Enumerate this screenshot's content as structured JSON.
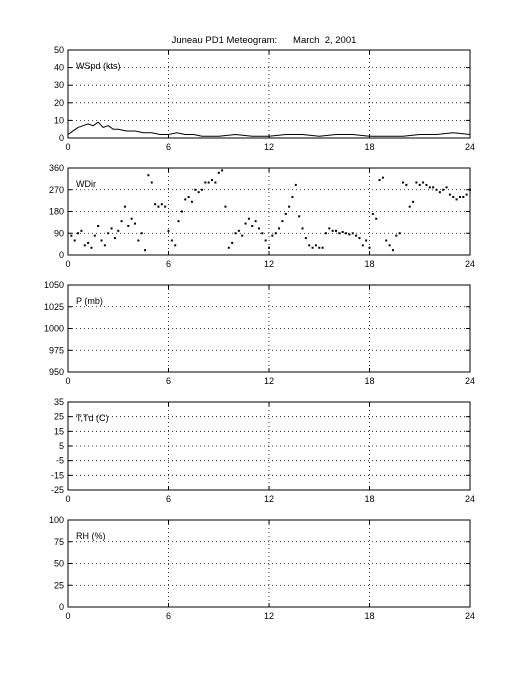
{
  "title": "Juneau PD1 Meteogram:      March  2, 2001",
  "chart_data": [
    {
      "type": "line",
      "label": "WSpd (kts)",
      "xlim": [
        0,
        24
      ],
      "xticks": [
        "0",
        "6",
        "12",
        "18",
        "24"
      ],
      "ylim": [
        0,
        50
      ],
      "yticks": [
        "0",
        "10",
        "20",
        "30",
        "40",
        "50"
      ],
      "grid": true,
      "x": [
        0,
        0.3,
        0.6,
        0.9,
        1.2,
        1.5,
        1.8,
        2.1,
        2.4,
        2.7,
        3.0,
        3.5,
        4.0,
        4.5,
        5.0,
        5.5,
        6.0,
        6.5,
        7.0,
        7.5,
        8.0,
        9.0,
        10.0,
        11.0,
        12.0,
        13.0,
        14.0,
        15.0,
        16.0,
        17.0,
        18.0,
        18.5,
        19.0,
        20.0,
        21.0,
        22.0,
        23.0,
        24.0
      ],
      "values": [
        2,
        4,
        6,
        7,
        8,
        7,
        9,
        6,
        7,
        5,
        5,
        4,
        4,
        3,
        3,
        2,
        2,
        3,
        2,
        2,
        1,
        1,
        2,
        1,
        1,
        2,
        2,
        1,
        2,
        2,
        1,
        1,
        1,
        1,
        2,
        2,
        3,
        2
      ]
    },
    {
      "type": "scatter",
      "label": "WDir",
      "xlim": [
        0,
        24
      ],
      "xticks": [
        "0",
        "6",
        "12",
        "18",
        "24"
      ],
      "ylim": [
        0,
        360
      ],
      "yticks": [
        "0",
        "90",
        "180",
        "270",
        "360"
      ],
      "grid": true,
      "x": [
        0.2,
        0.4,
        0.6,
        0.8,
        1.0,
        1.2,
        1.4,
        1.6,
        1.8,
        2.0,
        2.2,
        2.4,
        2.6,
        2.8,
        3.0,
        3.2,
        3.4,
        3.6,
        3.8,
        4.0,
        4.2,
        4.4,
        4.6,
        4.8,
        5.0,
        5.2,
        5.4,
        5.6,
        5.8,
        6.0,
        6.2,
        6.4,
        6.6,
        6.8,
        7.0,
        7.2,
        7.4,
        7.6,
        7.8,
        8.0,
        8.2,
        8.4,
        8.6,
        8.8,
        9.0,
        9.2,
        9.4,
        9.6,
        9.8,
        10.0,
        10.2,
        10.4,
        10.6,
        10.8,
        11.0,
        11.2,
        11.4,
        11.6,
        11.8,
        12.0,
        12.2,
        12.4,
        12.6,
        12.8,
        13.0,
        13.2,
        13.4,
        13.6,
        13.8,
        14.0,
        14.2,
        14.4,
        14.6,
        14.8,
        15.0,
        15.2,
        15.4,
        15.6,
        15.8,
        16.0,
        16.2,
        16.4,
        16.6,
        16.8,
        17.0,
        17.2,
        17.4,
        17.6,
        17.8,
        18.0,
        18.2,
        18.4,
        18.6,
        18.8,
        19.0,
        19.2,
        19.4,
        19.6,
        19.8,
        20.0,
        20.2,
        20.4,
        20.6,
        20.8,
        21.0,
        21.2,
        21.4,
        21.6,
        21.8,
        22.0,
        22.2,
        22.4,
        22.6,
        22.8,
        23.0,
        23.2,
        23.4,
        23.6,
        23.8,
        24.0
      ],
      "values": [
        80,
        60,
        90,
        100,
        40,
        50,
        30,
        80,
        120,
        60,
        40,
        90,
        110,
        70,
        100,
        140,
        200,
        120,
        150,
        130,
        60,
        90,
        20,
        330,
        300,
        210,
        200,
        210,
        200,
        100,
        60,
        40,
        140,
        180,
        230,
        240,
        220,
        270,
        260,
        270,
        300,
        300,
        310,
        300,
        340,
        350,
        200,
        30,
        50,
        90,
        100,
        80,
        130,
        150,
        120,
        140,
        110,
        90,
        60,
        30,
        80,
        90,
        110,
        140,
        170,
        200,
        240,
        290,
        160,
        110,
        70,
        40,
        30,
        40,
        30,
        30,
        90,
        110,
        100,
        100,
        90,
        95,
        90,
        85,
        90,
        80,
        70,
        40,
        60,
        30,
        170,
        150,
        310,
        320,
        60,
        40,
        20,
        80,
        90,
        300,
        290,
        200,
        220,
        300,
        290,
        300,
        290,
        280,
        280,
        270,
        260,
        270,
        280,
        250,
        240,
        230,
        240,
        240,
        250,
        270
      ]
    },
    {
      "type": "line",
      "label": "P (mb)",
      "xlim": [
        0,
        24
      ],
      "xticks": [
        "0",
        "6",
        "12",
        "18",
        "24"
      ],
      "ylim": [
        950,
        1050
      ],
      "yticks": [
        "950",
        "975",
        "1000",
        "1025",
        "1050"
      ],
      "grid": true,
      "x": [],
      "values": []
    },
    {
      "type": "line",
      "label": "T,Td (C)",
      "xlim": [
        0,
        24
      ],
      "xticks": [
        "0",
        "6",
        "12",
        "18",
        "24"
      ],
      "ylim": [
        -25,
        35
      ],
      "yticks": [
        "-25",
        "-15",
        "-5",
        "5",
        "15",
        "25",
        "35"
      ],
      "grid": true,
      "x": [],
      "values": []
    },
    {
      "type": "line",
      "label": "RH (%)",
      "xlim": [
        0,
        24
      ],
      "xticks": [
        "0",
        "6",
        "12",
        "18",
        "24"
      ],
      "ylim": [
        0,
        100
      ],
      "yticks": [
        "0",
        "25",
        "50",
        "75",
        "100"
      ],
      "grid": true,
      "x": [],
      "values": []
    }
  ]
}
